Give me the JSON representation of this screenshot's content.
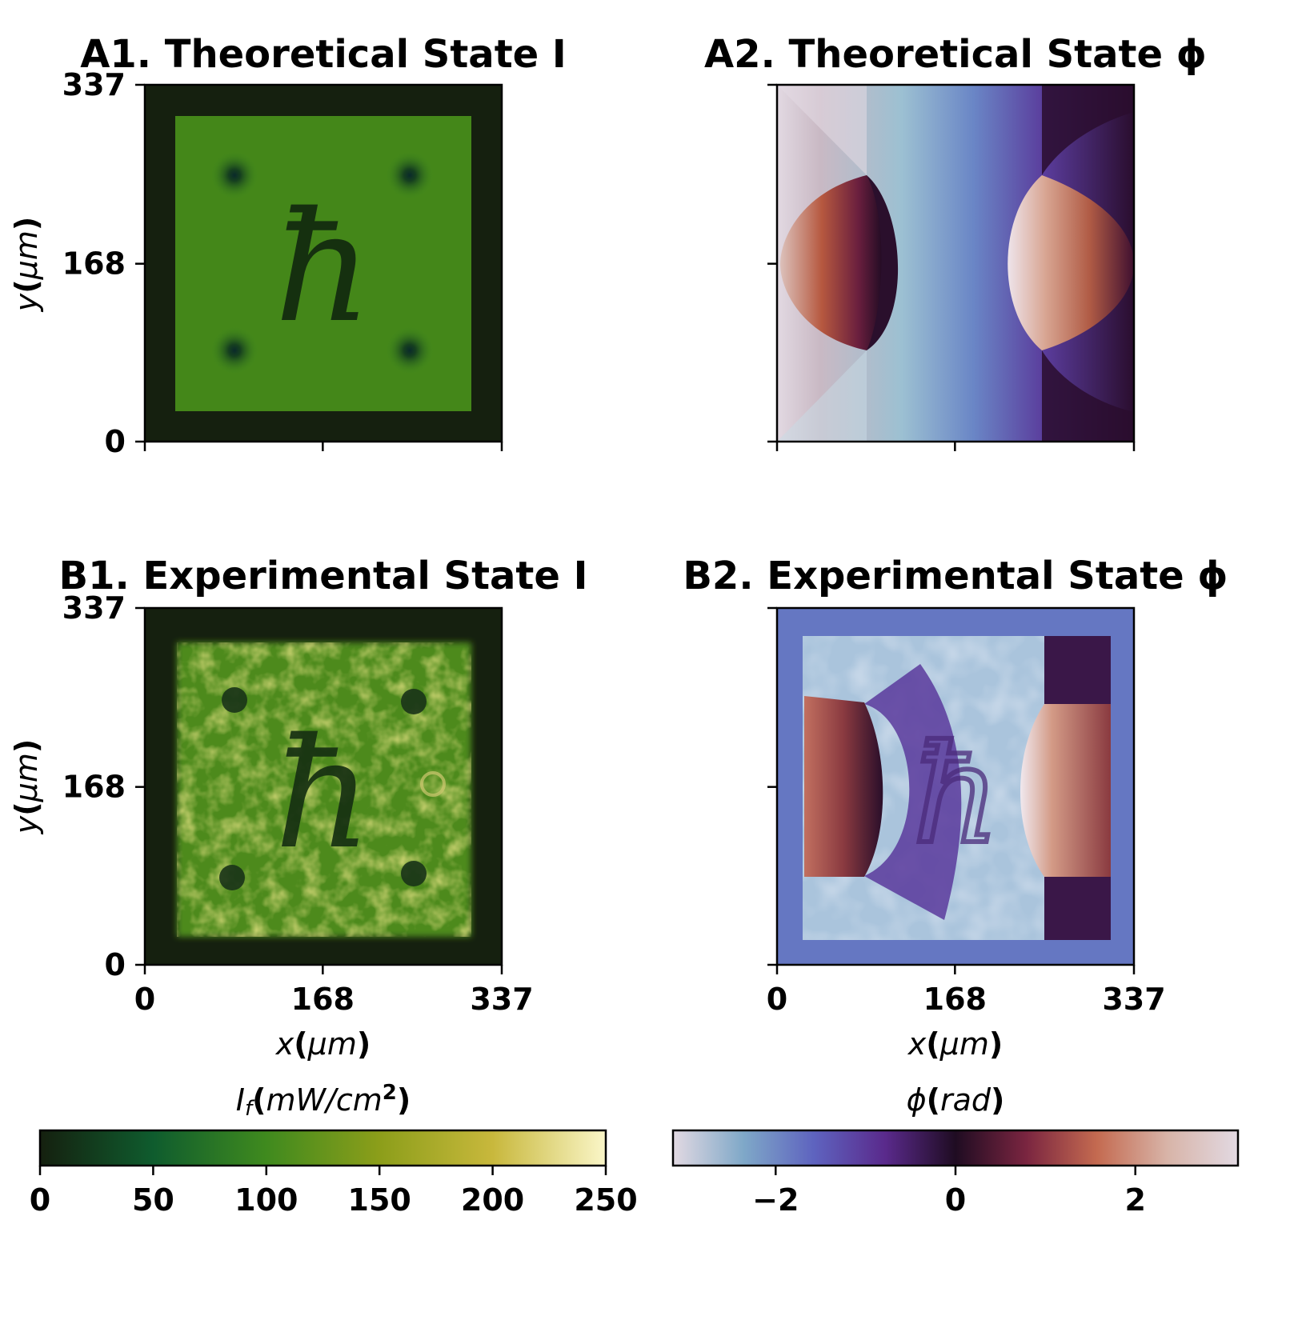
{
  "chart_data": [
    {
      "type": "heatmap",
      "id": "A1",
      "title": "A1. Theoretical State I",
      "x_ticks": [
        "",
        "",
        ""
      ],
      "y_ticks": [
        "0",
        "168",
        "337"
      ],
      "xlim": [
        0,
        337
      ],
      "ylim": [
        0,
        337
      ],
      "xlabel": "",
      "ylabel": "y(μm)",
      "colormap": "green-intensity",
      "background_value_mW_cm2": 0,
      "plateau_value_mW_cm2": 110,
      "vortex_count": 4,
      "glyph": "ħ"
    },
    {
      "type": "heatmap",
      "id": "A2",
      "title": "A2. Theoretical State ϕ",
      "x_ticks": [
        "",
        "",
        ""
      ],
      "y_ticks": [
        "",
        "",
        ""
      ],
      "xlim": [
        0,
        337
      ],
      "ylim": [
        0,
        337
      ],
      "xlabel": "",
      "ylabel": "",
      "colormap": "twilight-phase"
    },
    {
      "type": "heatmap",
      "id": "B1",
      "title": "B1. Experimental State I",
      "x_ticks": [
        "0",
        "168",
        "337"
      ],
      "y_ticks": [
        "0",
        "168",
        "337"
      ],
      "xlim": [
        0,
        337
      ],
      "ylim": [
        0,
        337
      ],
      "xlabel": "x(μm)",
      "ylabel": "y(μm)",
      "colormap": "green-intensity",
      "glyph": "ħ"
    },
    {
      "type": "heatmap",
      "id": "B2",
      "title": "B2. Experimental State ϕ",
      "x_ticks": [
        "0",
        "168",
        "337"
      ],
      "y_ticks": [
        "",
        "",
        ""
      ],
      "xlim": [
        0,
        337
      ],
      "ylim": [
        0,
        337
      ],
      "xlabel": "x(μm)",
      "ylabel": "",
      "colormap": "twilight-phase",
      "glyph": "ħ"
    }
  ],
  "colorbars": [
    {
      "label": "If(mW/cm2)",
      "range": [
        0,
        250
      ],
      "ticks": [
        "0",
        "50",
        "100",
        "150",
        "200",
        "250"
      ],
      "tick_values": [
        0,
        50,
        100,
        150,
        200,
        250
      ],
      "colors": [
        "#15200f",
        "#0f5c2e",
        "#3f8a1e",
        "#8c9e1a",
        "#c8b83c",
        "#faf6c8"
      ]
    },
    {
      "label": "ϕ(rad)",
      "range": [
        -3.1416,
        3.1416
      ],
      "ticks": [
        "−2",
        "0",
        "2"
      ],
      "tick_values": [
        -2,
        0,
        2
      ],
      "colors": [
        "#e2d9e2",
        "#7fa8c8",
        "#5e63bf",
        "#5a2a8c",
        "#1f0c22",
        "#7a2540",
        "#c46a50",
        "#d8b4a8",
        "#e2d9e2"
      ]
    }
  ],
  "labels": {
    "y_axis_var": "y",
    "x_axis_var": "x",
    "axis_unit": "μm",
    "cb1_var": "I",
    "cb1_sub": "f",
    "cb1_unit": "mW/cm",
    "cb1_exp": "2",
    "cb2_var": "ϕ",
    "cb2_unit": "rad"
  }
}
